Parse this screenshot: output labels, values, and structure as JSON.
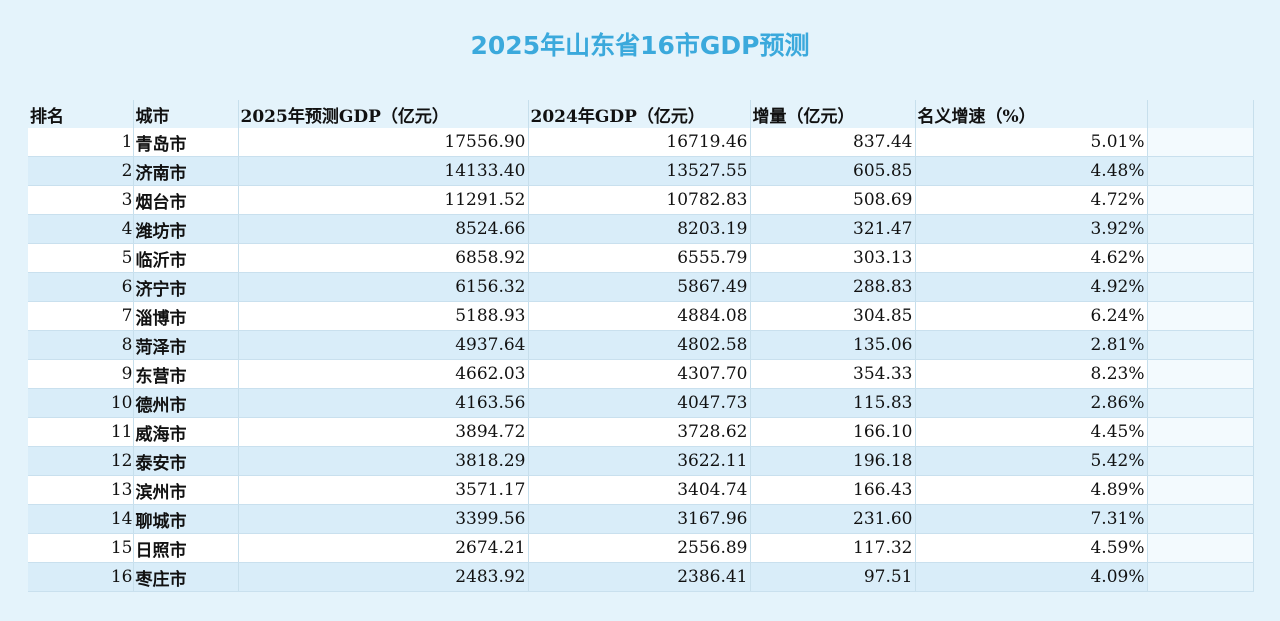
{
  "title": "2025年山东省16市GDP预测",
  "table": {
    "headers": [
      "排名",
      "城市",
      "2025年预测GDP（亿元）",
      "2024年GDP（亿元）",
      "增量（亿元）",
      "名义增速（%）"
    ],
    "rows": [
      [
        "1",
        "青岛市",
        "17556.90",
        "16719.46",
        "837.44",
        "5.01%"
      ],
      [
        "2",
        "济南市",
        "14133.40",
        "13527.55",
        "605.85",
        "4.48%"
      ],
      [
        "3",
        "烟台市",
        "11291.52",
        "10782.83",
        "508.69",
        "4.72%"
      ],
      [
        "4",
        "潍坊市",
        "8524.66",
        "8203.19",
        "321.47",
        "3.92%"
      ],
      [
        "5",
        "临沂市",
        "6858.92",
        "6555.79",
        "303.13",
        "4.62%"
      ],
      [
        "6",
        "济宁市",
        "6156.32",
        "5867.49",
        "288.83",
        "4.92%"
      ],
      [
        "7",
        "淄博市",
        "5188.93",
        "4884.08",
        "304.85",
        "6.24%"
      ],
      [
        "8",
        "菏泽市",
        "4937.64",
        "4802.58",
        "135.06",
        "2.81%"
      ],
      [
        "9",
        "东营市",
        "4662.03",
        "4307.70",
        "354.33",
        "8.23%"
      ],
      [
        "10",
        "德州市",
        "4163.56",
        "4047.73",
        "115.83",
        "2.86%"
      ],
      [
        "11",
        "威海市",
        "3894.72",
        "3728.62",
        "166.10",
        "4.45%"
      ],
      [
        "12",
        "泰安市",
        "3818.29",
        "3622.11",
        "196.18",
        "5.42%"
      ],
      [
        "13",
        "滨州市",
        "3571.17",
        "3404.74",
        "166.43",
        "4.89%"
      ],
      [
        "14",
        "聊城市",
        "3399.56",
        "3167.96",
        "231.60",
        "7.31%"
      ],
      [
        "15",
        "日照市",
        "2674.21",
        "2556.89",
        "117.32",
        "4.59%"
      ],
      [
        "16",
        "枣庄市",
        "2483.92",
        "2386.41",
        "97.51",
        "4.09%"
      ]
    ]
  },
  "colors": {
    "title": "#3ba9dc",
    "row_alt": "#d9edf9",
    "background": "#e4f3fb"
  }
}
